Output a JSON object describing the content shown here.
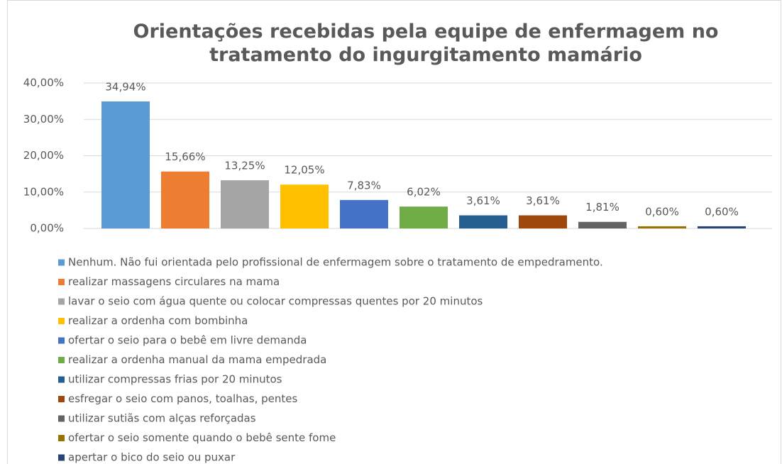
{
  "chart_data": {
    "type": "bar",
    "title": "Orientações recebidas pela equipe de enfermagem no tratamento do ingurgitamento mamário",
    "ylim": [
      0,
      40
    ],
    "yticks": [
      {
        "value": 0,
        "label": "0,00%"
      },
      {
        "value": 10,
        "label": "10,00%"
      },
      {
        "value": 20,
        "label": "20,00%"
      },
      {
        "value": 30,
        "label": "30,00%"
      },
      {
        "value": 40,
        "label": "40,00%"
      }
    ],
    "grid": true,
    "legend": "bottom",
    "series": [
      {
        "name": "Nenhum. Não fui orientada pelo profissional de enfermagem sobre o tratamento de empedramento.",
        "color": "#5b9bd5",
        "values": [
          34.94
        ],
        "value_labels": [
          "34,94%"
        ]
      },
      {
        "name": "realizar massagens circulares na mama",
        "color": "#ed7d31",
        "values": [
          15.66
        ],
        "value_labels": [
          "15,66%"
        ]
      },
      {
        "name": "lavar o seio com água quente ou colocar compressas quentes por 20 minutos",
        "color": "#a5a5a5",
        "values": [
          13.25
        ],
        "value_labels": [
          "13,25%"
        ]
      },
      {
        "name": "realizar a ordenha com bombinha",
        "color": "#ffc000",
        "values": [
          12.05
        ],
        "value_labels": [
          "12,05%"
        ]
      },
      {
        "name": "ofertar o seio para o bebê em livre demanda",
        "color": "#4472c4",
        "values": [
          7.83
        ],
        "value_labels": [
          "7,83%"
        ]
      },
      {
        "name": "realizar a ordenha manual da mama empedrada",
        "color": "#70ad47",
        "values": [
          6.02
        ],
        "value_labels": [
          "6,02%"
        ]
      },
      {
        "name": "utilizar compressas frias por 20 minutos",
        "color": "#255e91",
        "values": [
          3.61
        ],
        "value_labels": [
          "3,61%"
        ]
      },
      {
        "name": "esfregar o seio com panos, toalhas, pentes",
        "color": "#9e480e",
        "values": [
          3.61
        ],
        "value_labels": [
          "3,61%"
        ]
      },
      {
        "name": "utilizar sutiãs com alças reforçadas",
        "color": "#636363",
        "values": [
          1.81
        ],
        "value_labels": [
          "1,81%"
        ]
      },
      {
        "name": "ofertar o seio somente quando o bebê sente fome",
        "color": "#997300",
        "values": [
          0.6
        ],
        "value_labels": [
          "0,60%"
        ]
      },
      {
        "name": "apertar o bico do seio ou puxar",
        "color": "#264478",
        "values": [
          0.6
        ],
        "value_labels": [
          "0,60%"
        ]
      }
    ]
  }
}
